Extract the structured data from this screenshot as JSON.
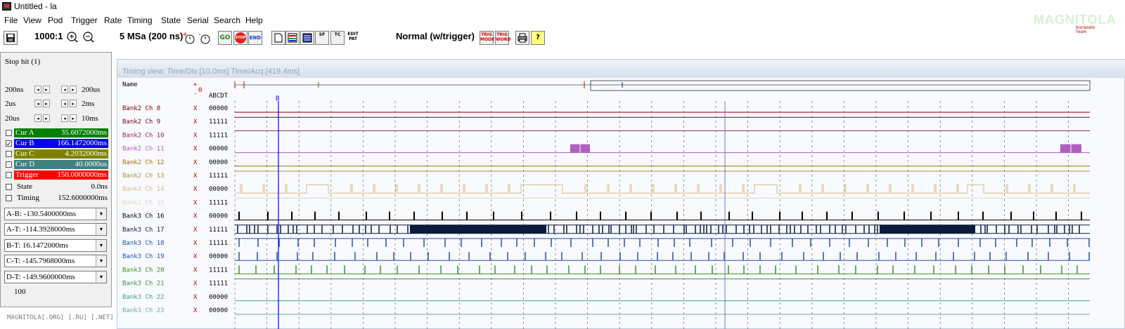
{
  "window": {
    "title": "Untitled - la"
  },
  "menu": [
    "File",
    "View",
    "Pod",
    "Trigger",
    "Rate",
    "Timing",
    "State",
    "Serial",
    "Search",
    "Help"
  ],
  "brand": {
    "name": "MAGNITOLA",
    "sub": "Koriandic Team"
  },
  "toolbar": {
    "zoom": "1000:1",
    "samplerate": "5 MSa (200 ns)",
    "go": "GO",
    "stop": "STOP",
    "end": "END",
    "edit_pat": [
      "EDIT",
      "PAT"
    ],
    "trigger_mode": "Normal (w/trigger)",
    "trig_mode_btn": [
      "TRIG",
      "MODE"
    ],
    "trig_word_btn": [
      "TRIG",
      "WORD"
    ],
    "sf": "SF",
    "tc": "TC"
  },
  "left": {
    "stop_hit": "Stop hit (1)",
    "steps": [
      {
        "left": "200ns",
        "right": "200us"
      },
      {
        "left": "2us",
        "right": "2ms"
      },
      {
        "left": "20us",
        "right": "10ms"
      }
    ],
    "cursors": [
      {
        "label": "Cur A",
        "value": "35.6072000ms",
        "checked": false,
        "color": "#008000"
      },
      {
        "label": "Cur B",
        "value": "166.1472000ms",
        "checked": true,
        "color": "#0000ff"
      },
      {
        "label": "Cur C",
        "value": "4.2032000ms",
        "checked": false,
        "color": "#808000"
      },
      {
        "label": "Cur D",
        "value": "40.0000us",
        "checked": false,
        "color": "#408080"
      },
      {
        "label": "Trigger",
        "value": "150.0000000ms",
        "checked": false,
        "color": "#ff0000"
      }
    ],
    "state": {
      "label": "State",
      "value": "0.0ns"
    },
    "timing": {
      "label": "Timing",
      "value": "152.6000000ms"
    },
    "deltas": [
      "A-B: -130.5400000ms",
      "A-T: -114.3928000ms",
      "B-T: 16.1472000ms",
      "C-T: -145.7968000ms",
      "D-T: -149.9600000ms"
    ],
    "count": "100"
  },
  "view": {
    "title": "Timing view:  Time/Div:[10.0ms] Time/Acq:[419.4ms]",
    "name_header": "Name",
    "plus": "+",
    "minus": "-",
    "zero": "0",
    "cols_header": "ABCDT",
    "cursor_b_label": "B",
    "channels": [
      {
        "name": "Bank2 Ch 8",
        "x": "X",
        "bits": "00000",
        "color": "#800000",
        "wave": "flat-low"
      },
      {
        "name": "Bank2 Ch 9",
        "x": "X",
        "bits": "11111",
        "color": "#800020",
        "wave": "flat-high"
      },
      {
        "name": "Bank2 Ch 10",
        "x": "X",
        "bits": "11111",
        "color": "#a02060",
        "wave": "flat-high"
      },
      {
        "name": "Bank2 Ch 11",
        "x": "X",
        "bits": "00000",
        "color": "#b060c0",
        "wave": "blocks11"
      },
      {
        "name": "Bank2 Ch 12",
        "x": "X",
        "bits": "00000",
        "color": "#a07000",
        "wave": "flat-low"
      },
      {
        "name": "Bank2 Ch 13",
        "x": "X",
        "bits": "11111",
        "color": "#b09040",
        "wave": "flat-high"
      },
      {
        "name": "Bank2 Ch 14",
        "x": "X",
        "bits": "00000",
        "color": "#d8bc88",
        "wave": "pulses14"
      },
      {
        "name": "Bank2 Ch 15",
        "x": "X",
        "bits": "11111",
        "color": "#e6d8b8",
        "wave": "flat-high"
      },
      {
        "name": "Bank3 Ch 16",
        "x": "X",
        "bits": "00000",
        "color": "#000000",
        "wave": "spikes16"
      },
      {
        "name": "Bank3 Ch 17",
        "x": "X",
        "bits": "11111",
        "color": "#0a1a3a",
        "wave": "dense17"
      },
      {
        "name": "Bank3 Ch 18",
        "x": "X",
        "bits": "11111",
        "color": "#2050b0",
        "wave": "spikes18"
      },
      {
        "name": "Bank3 Ch 19",
        "x": "X",
        "bits": "00000",
        "color": "#2050b0",
        "wave": "spikes19"
      },
      {
        "name": "Bank3 Ch 20",
        "x": "X",
        "bits": "11111",
        "color": "#409020",
        "wave": "spikes20"
      },
      {
        "name": "Bank3 Ch 21",
        "x": "X",
        "bits": "11111",
        "color": "#409040",
        "wave": "flat-high"
      },
      {
        "name": "Bank3 Ch 22",
        "x": "X",
        "bits": "00000",
        "color": "#40a080",
        "wave": "flat-low"
      },
      {
        "name": "Bank3 Ch 23",
        "x": "X",
        "bits": "00000",
        "color": "#60b0a0",
        "wave": "flat-low"
      }
    ]
  },
  "footer": "MAGNITOLA[.ORG] [.RU] [.NET]"
}
